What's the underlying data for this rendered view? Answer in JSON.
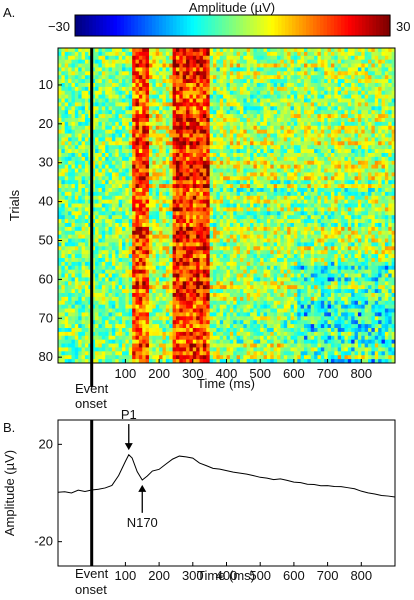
{
  "chart_data": [
    {
      "panel_label": "A.",
      "type": "heatmap",
      "colorbar": {
        "title": "Amplitude (µV)",
        "min_label": "−30",
        "max_label": "30",
        "range": [
          -30,
          30
        ],
        "colormap": "jet"
      },
      "xlabel": "Time (ms)",
      "ylabel": "Trials",
      "xlim": [
        -100,
        900
      ],
      "ylim": [
        81,
        1
      ],
      "x_ticks": [
        100,
        200,
        300,
        400,
        500,
        600,
        700,
        800
      ],
      "y_ticks": [
        10,
        20,
        30,
        40,
        50,
        60,
        70,
        80
      ],
      "n_trials": 81,
      "n_time_bins": 100,
      "time_per_bin_ms": 10,
      "event_marker": {
        "x": 0,
        "label_line1": "Event",
        "label_line2": "onset"
      },
      "description_of_pattern": [
        {
          "time_ms": [
            120,
            170
          ],
          "mean_amplitude_uV": 18
        },
        {
          "time_ms": [
            170,
            240
          ],
          "mean_amplitude_uV": 4
        },
        {
          "time_ms": [
            240,
            350
          ],
          "mean_amplitude_uV": 20
        },
        {
          "time_ms": [
            350,
            900
          ],
          "mean_amplitude_uV": 2
        }
      ]
    },
    {
      "panel_label": "B.",
      "type": "line",
      "xlabel": "Time (ms)",
      "ylabel": "Amplitude (µV)",
      "xlim": [
        -100,
        900
      ],
      "ylim": [
        -30,
        30
      ],
      "x_ticks": [
        100,
        200,
        300,
        400,
        500,
        600,
        700,
        800
      ],
      "y_ticks": [
        20,
        -20
      ],
      "y_tick_labels": [
        "20",
        "-20"
      ],
      "event_marker": {
        "x": 0,
        "label_line1": "Event",
        "label_line2": "onset"
      },
      "annotations": [
        {
          "text": "P1",
          "x": 110,
          "y": 16
        },
        {
          "text": "N170",
          "x": 150,
          "y": 5
        }
      ],
      "series": [
        {
          "x": [
            -100,
            -80,
            -60,
            -40,
            -20,
            0,
            20,
            40,
            60,
            80,
            100,
            110,
            120,
            135,
            150,
            165,
            180,
            200,
            220,
            240,
            260,
            280,
            300,
            320,
            340,
            360,
            380,
            400,
            420,
            440,
            460,
            480,
            500,
            520,
            540,
            560,
            580,
            600,
            620,
            640,
            660,
            680,
            700,
            720,
            740,
            760,
            780,
            800,
            820,
            840,
            860,
            880,
            900
          ],
          "y": [
            0.5,
            0.8,
            0.3,
            1.0,
            0.6,
            1.0,
            1.5,
            1.8,
            3,
            7,
            13,
            15.5,
            14,
            9,
            5,
            7,
            9,
            10,
            12,
            14,
            15.5,
            15,
            14.5,
            12,
            11,
            10.5,
            9.8,
            9,
            8.5,
            8,
            7.8,
            7.4,
            6.8,
            6,
            5.8,
            5.5,
            5,
            4.8,
            4.2,
            3.8,
            3.5,
            3.2,
            3,
            2.6,
            2.4,
            2,
            1.6,
            0.8,
            0.2,
            -0.3,
            -0.8,
            -1.2,
            -1.5
          ]
        }
      ]
    }
  ]
}
